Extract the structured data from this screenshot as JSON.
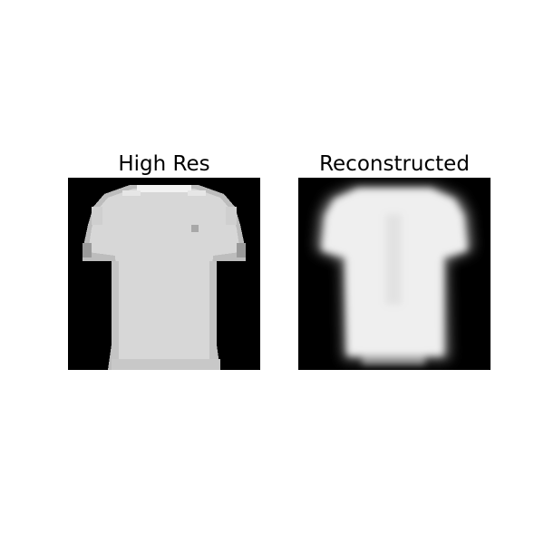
{
  "figure": {
    "panels": [
      {
        "title": "High Res",
        "image": "grayscale low-resolution t-shirt on black background (sharp, pixelated)"
      },
      {
        "title": "Reconstructed",
        "image": "grayscale t-shirt on black background (blurred reconstruction)"
      }
    ],
    "colors": {
      "background": "#ffffff",
      "image_background": "#000000",
      "shirt_high_res": "#d6d6d6",
      "shirt_reconstructed": "#f0f0f0"
    }
  }
}
